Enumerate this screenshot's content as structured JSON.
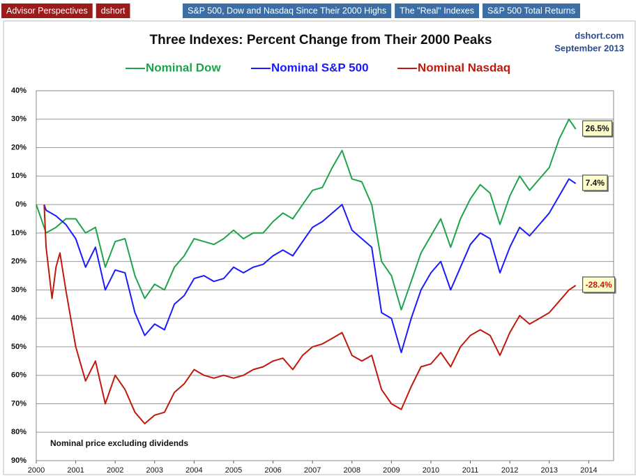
{
  "nav": [
    {
      "label": "Advisor Perspectives",
      "color": "#9b1b1b"
    },
    {
      "label": "dshort",
      "color": "#9b1b1b"
    },
    {
      "label": "S&P 500, Dow and Nasdaq Since Their 2000 Highs",
      "color": "#3a6ea5"
    },
    {
      "label": "The \"Real\" Indexes",
      "color": "#3a6ea5"
    },
    {
      "label": "S&P 500 Total Returns",
      "color": "#3a6ea5"
    }
  ],
  "chart_data": {
    "type": "line",
    "title": "Three Indexes: Percent Change from Their 2000 Peaks",
    "annotations": [
      "dshort.com",
      "September 2013",
      "Nominal price excluding dividends"
    ],
    "xlim": [
      2000,
      2014.63
    ],
    "xticks": [
      2000,
      2001,
      2002,
      2003,
      2004,
      2005,
      2006,
      2007,
      2008,
      2009,
      2010,
      2011,
      2012,
      2013,
      2014
    ],
    "ylim": [
      -90,
      40
    ],
    "yticks": [
      {
        "value": 40,
        "label": "40%"
      },
      {
        "value": 30,
        "label": "30%"
      },
      {
        "value": 20,
        "label": "20%"
      },
      {
        "value": 10,
        "label": "10%"
      },
      {
        "value": 0,
        "label": "0%"
      },
      {
        "value": -10,
        "label": "10%"
      },
      {
        "value": -20,
        "label": "20%"
      },
      {
        "value": -30,
        "label": "30%"
      },
      {
        "value": -40,
        "label": "40%"
      },
      {
        "value": -50,
        "label": "50%"
      },
      {
        "value": -60,
        "label": "60%"
      },
      {
        "value": -70,
        "label": "70%"
      },
      {
        "value": -80,
        "label": "80%"
      },
      {
        "value": -90,
        "label": "90%"
      }
    ],
    "grid": true,
    "series": [
      {
        "name": "Nominal Dow",
        "color": "#1ea34a",
        "end_label": "26.5%",
        "x": [
          2000,
          2000.25,
          2000.5,
          2000.75,
          2001,
          2001.25,
          2001.5,
          2001.75,
          2002,
          2002.25,
          2002.5,
          2002.75,
          2003,
          2003.25,
          2003.5,
          2003.75,
          2004,
          2004.25,
          2004.5,
          2004.75,
          2005,
          2005.25,
          2005.5,
          2005.75,
          2006,
          2006.25,
          2006.5,
          2006.75,
          2007,
          2007.25,
          2007.5,
          2007.75,
          2008,
          2008.25,
          2008.5,
          2008.75,
          2009,
          2009.25,
          2009.5,
          2009.75,
          2010,
          2010.25,
          2010.5,
          2010.75,
          2011,
          2011.25,
          2011.5,
          2011.75,
          2012,
          2012.25,
          2012.5,
          2012.75,
          2013,
          2013.25,
          2013.5,
          2013.67
        ],
        "values": [
          0,
          -10,
          -8,
          -5,
          -5,
          -10,
          -8,
          -22,
          -13,
          -12,
          -25,
          -33,
          -28,
          -30,
          -22,
          -18,
          -12,
          -13,
          -14,
          -12,
          -9,
          -12,
          -10,
          -10,
          -6,
          -3,
          -5,
          0,
          5,
          6,
          13,
          19,
          9,
          8,
          0,
          -20,
          -25,
          -37,
          -27,
          -17,
          -11,
          -5,
          -15,
          -5,
          2,
          7,
          4,
          -7,
          3,
          10,
          5,
          9,
          13,
          23,
          30,
          26.5
        ]
      },
      {
        "name": "Nominal S&P 500",
        "color": "#1a1aff",
        "end_label": "7.4%",
        "x": [
          2000.2,
          2000.25,
          2000.5,
          2000.75,
          2001,
          2001.25,
          2001.5,
          2001.75,
          2002,
          2002.25,
          2002.5,
          2002.75,
          2003,
          2003.25,
          2003.5,
          2003.75,
          2004,
          2004.25,
          2004.5,
          2004.75,
          2005,
          2005.25,
          2005.5,
          2005.75,
          2006,
          2006.25,
          2006.5,
          2006.75,
          2007,
          2007.25,
          2007.5,
          2007.75,
          2008,
          2008.25,
          2008.5,
          2008.75,
          2009,
          2009.25,
          2009.5,
          2009.75,
          2010,
          2010.25,
          2010.5,
          2010.75,
          2011,
          2011.25,
          2011.5,
          2011.75,
          2012,
          2012.25,
          2012.5,
          2012.75,
          2013,
          2013.25,
          2013.5,
          2013.67
        ],
        "values": [
          0,
          -2,
          -4,
          -7,
          -12,
          -22,
          -15,
          -30,
          -23,
          -24,
          -38,
          -46,
          -42,
          -44,
          -35,
          -32,
          -26,
          -25,
          -27,
          -26,
          -22,
          -24,
          -22,
          -21,
          -18,
          -16,
          -18,
          -13,
          -8,
          -6,
          -3,
          0,
          -9,
          -12,
          -15,
          -38,
          -40,
          -52,
          -40,
          -30,
          -24,
          -20,
          -30,
          -22,
          -14,
          -10,
          -12,
          -24,
          -15,
          -8,
          -11,
          -7,
          -3,
          3,
          9,
          7.4
        ]
      },
      {
        "name": "Nominal Nasdaq",
        "color": "#c0180c",
        "end_label": "-28.4%",
        "x": [
          2000.2,
          2000.25,
          2000.4,
          2000.5,
          2000.6,
          2000.75,
          2001,
          2001.25,
          2001.5,
          2001.75,
          2002,
          2002.25,
          2002.5,
          2002.75,
          2003,
          2003.25,
          2003.5,
          2003.75,
          2004,
          2004.25,
          2004.5,
          2004.75,
          2005,
          2005.25,
          2005.5,
          2005.75,
          2006,
          2006.25,
          2006.5,
          2006.75,
          2007,
          2007.25,
          2007.5,
          2007.75,
          2008,
          2008.25,
          2008.5,
          2008.75,
          2009,
          2009.25,
          2009.5,
          2009.75,
          2010,
          2010.25,
          2010.5,
          2010.75,
          2011,
          2011.25,
          2011.5,
          2011.75,
          2012,
          2012.25,
          2012.5,
          2012.75,
          2013,
          2013.25,
          2013.5,
          2013.67
        ],
        "values": [
          0,
          -15,
          -33,
          -22,
          -17,
          -30,
          -50,
          -62,
          -55,
          -70,
          -60,
          -65,
          -73,
          -77,
          -74,
          -73,
          -66,
          -63,
          -58,
          -60,
          -61,
          -60,
          -61,
          -60,
          -58,
          -57,
          -55,
          -54,
          -58,
          -53,
          -50,
          -49,
          -47,
          -45,
          -53,
          -55,
          -53,
          -65,
          -70,
          -72,
          -64,
          -57,
          -56,
          -52,
          -57,
          -50,
          -46,
          -44,
          -46,
          -53,
          -45,
          -39,
          -42,
          -40,
          -38,
          -34,
          -30,
          -28.4
        ]
      }
    ]
  }
}
